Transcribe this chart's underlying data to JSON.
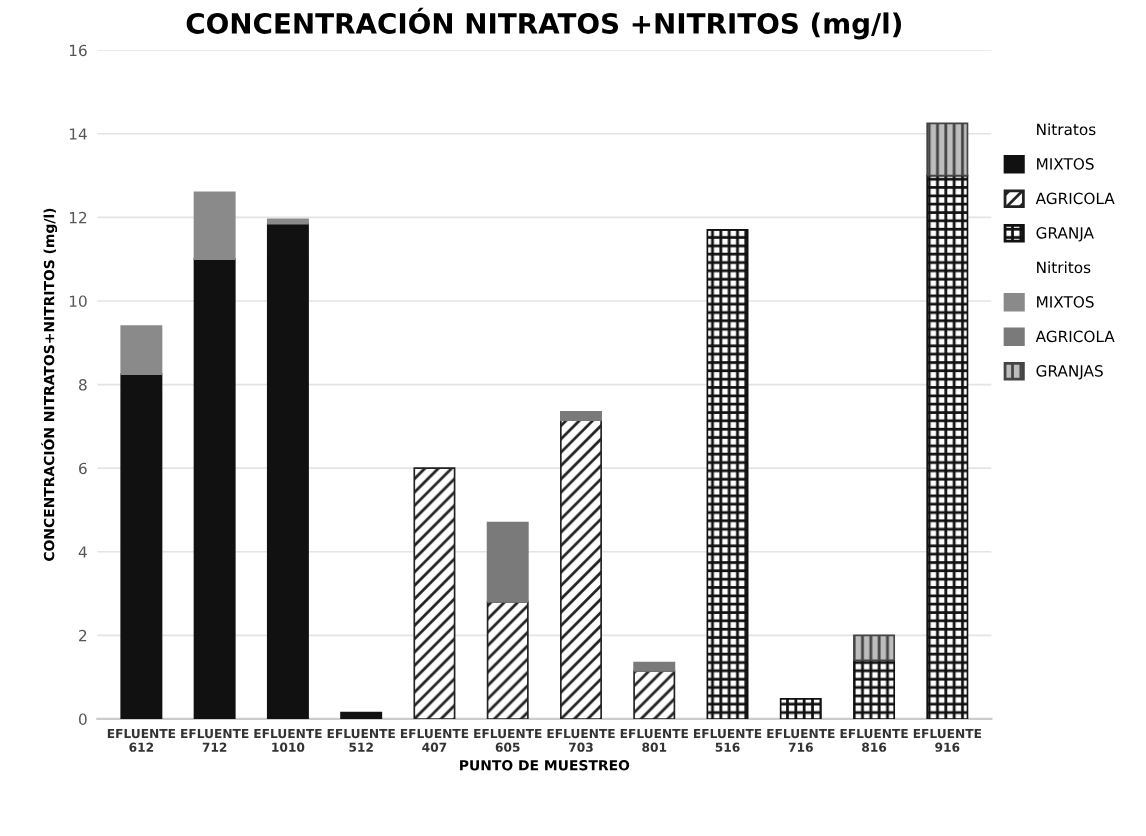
{
  "chart_data": {
    "type": "bar",
    "stacked": true,
    "title": "CONCENTRACIÓN NITRATOS +NITRITOS (mg/l)",
    "xlabel": "PUNTO DE MUESTREO",
    "ylabel": "CONCENTRACIÓN NITRATOS+NITRITOS (mg/l)",
    "legend_title": [
      "Nitratos",
      "Nitritos"
    ],
    "legend": "right",
    "grid": "y",
    "categories": [
      "EFLUENTE\n612",
      "EFLUENTE\n712",
      "EFLUENTE\n1010",
      "EFLUENTE\n512",
      "EFLUENTE\n407",
      "EFLUENTE\n605",
      "EFLUENTE\n703",
      "EFLUENTE\n801",
      "EFLUENTE\n516",
      "EFLUENTE\n716",
      "EFLUENTE\n816",
      "EFLUENTE\n916"
    ],
    "ylim": [
      0,
      16
    ],
    "yticks": [
      0,
      2,
      4,
      6,
      8,
      10,
      12,
      14,
      16
    ],
    "series": [
      {
        "name": "MIXTOS",
        "color": "#111111",
        "values": [
          8.25,
          11.0,
          11.85,
          0.15,
          null,
          null,
          null,
          null,
          null,
          null,
          null,
          null
        ]
      },
      {
        "name": "AGRICOLA",
        "color": "#222222",
        "values": [
          null,
          null,
          null,
          null,
          6.0,
          2.8,
          7.15,
          1.15,
          null,
          null,
          null,
          null
        ]
      },
      {
        "name": "GRANJA",
        "color": "#111111",
        "values": [
          null,
          null,
          null,
          null,
          null,
          null,
          null,
          null,
          11.7,
          0.48,
          1.4,
          13.0
        ]
      },
      {
        "name": "MIXTOS",
        "color": "#8a8a8a",
        "values": [
          1.15,
          1.6,
          0.1,
          null,
          null,
          null,
          null,
          null,
          null,
          null,
          null,
          null
        ]
      },
      {
        "name": "AGRICOLA",
        "color": "#7a7a7a",
        "values": [
          null,
          null,
          null,
          null,
          null,
          1.9,
          0.2,
          0.2,
          null,
          null,
          null,
          null
        ]
      },
      {
        "name": "GRANJAS",
        "color": "#444444",
        "values": [
          null,
          null,
          null,
          null,
          null,
          null,
          null,
          null,
          null,
          null,
          0.6,
          1.25
        ]
      }
    ]
  }
}
